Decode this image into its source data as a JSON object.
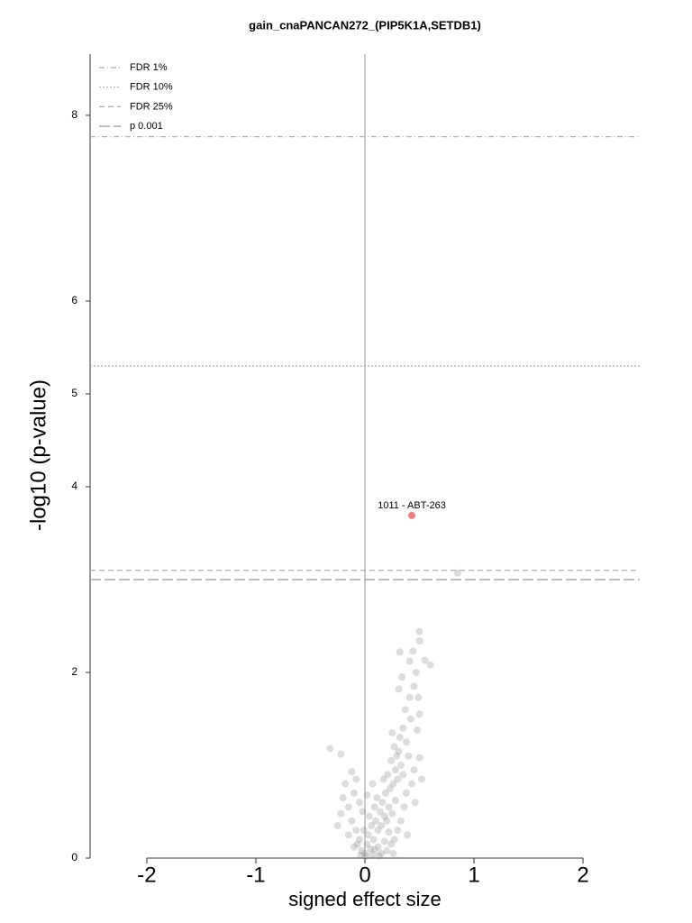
{
  "chart_data": {
    "type": "scatter",
    "title": "gain_cnaPANCAN272_(PIP5K1A,SETDB1)",
    "xlabel": "signed effect size",
    "ylabel": "-log10 (p-value)",
    "xlim": [
      -2.52,
      2.52
    ],
    "ylim": [
      0,
      8.66
    ],
    "xticks": [
      -2,
      -1,
      0,
      1,
      2
    ],
    "yticks": [
      0,
      2,
      4,
      5,
      6,
      8
    ],
    "reference_x": 0,
    "legend": "top-left",
    "thresholds": [
      {
        "name": "FDR 1%",
        "value": 7.77,
        "dash": "6,3,1,3",
        "color": "#aaaaaa"
      },
      {
        "name": "FDR 10%",
        "value": 5.3,
        "dash": "2,2",
        "color": "#aaaaaa"
      },
      {
        "name": "FDR 25%",
        "value": 3.1,
        "dash": "6,4",
        "color": "#aaaaaa"
      },
      {
        "name": "p 0.001",
        "value": 3.0,
        "dash": "12,4",
        "color": "#999999"
      }
    ],
    "points": {
      "color": "#8c8c8c",
      "x": [
        -0.32,
        -0.22,
        -0.12,
        -0.18,
        -0.08,
        -0.2,
        -0.15,
        -0.1,
        -0.05,
        -0.22,
        -0.12,
        -0.02,
        -0.08,
        -0.15,
        -0.05,
        -0.1,
        -0.03,
        0.0,
        0.02,
        -0.01,
        0.03,
        0.05,
        0.08,
        0.06,
        0.1,
        0.12,
        0.04,
        0.09,
        0.14,
        0.11,
        0.16,
        0.18,
        0.2,
        0.15,
        0.22,
        0.25,
        0.19,
        0.23,
        0.17,
        0.21,
        0.26,
        0.28,
        0.24,
        0.29,
        0.27,
        0.31,
        0.33,
        0.3,
        0.35,
        0.32,
        0.25,
        0.35,
        0.38,
        0.4,
        0.42,
        0.37,
        0.41,
        0.49,
        0.31,
        0.34,
        0.41,
        0.32,
        0.44,
        0.5,
        0.5,
        0.55,
        0.6,
        0.47,
        0.45,
        0.5,
        0.48,
        0.5,
        0.45,
        0.43,
        0.38,
        0.36,
        0.33,
        0.3,
        0.27,
        0.24,
        0.2,
        0.15,
        0.12,
        0.07,
        0.01,
        -0.04,
        -0.07,
        0.13,
        0.18,
        0.26,
        0.85,
        -0.25,
        0.02,
        0.07,
        0.39,
        0.46,
        0.52,
        0.28,
        0.22,
        0.09
      ],
      "y": [
        1.18,
        1.12,
        0.93,
        0.8,
        0.85,
        0.65,
        0.55,
        0.7,
        0.6,
        0.48,
        0.4,
        0.5,
        0.3,
        0.25,
        0.2,
        0.12,
        0.08,
        0.05,
        0.15,
        0.3,
        0.25,
        0.1,
        0.2,
        0.35,
        0.4,
        0.3,
        0.45,
        0.55,
        0.5,
        0.65,
        0.6,
        0.45,
        0.4,
        0.35,
        0.55,
        0.48,
        0.7,
        0.75,
        0.85,
        0.9,
        0.8,
        0.95,
        1.05,
        1.1,
        1.2,
        1.15,
        1.0,
        0.85,
        0.9,
        1.3,
        1.35,
        1.4,
        1.25,
        1.1,
        1.5,
        1.6,
        1.73,
        1.73,
        1.82,
        1.95,
        2.12,
        2.22,
        2.23,
        2.34,
        2.44,
        2.13,
        2.08,
        2.0,
        1.85,
        1.55,
        1.38,
        1.08,
        0.95,
        0.8,
        0.7,
        0.55,
        0.4,
        0.3,
        0.2,
        0.15,
        0.08,
        0.05,
        0.12,
        0.04,
        0.02,
        0.03,
        0.15,
        0.02,
        0.18,
        0.05,
        3.07,
        0.35,
        0.68,
        0.8,
        0.25,
        0.6,
        0.85,
        0.62,
        0.28,
        0.09
      ]
    },
    "highlight": {
      "label": "1011 - ABT-263",
      "x": 0.43,
      "y": 3.69,
      "color": "#f08080"
    }
  }
}
